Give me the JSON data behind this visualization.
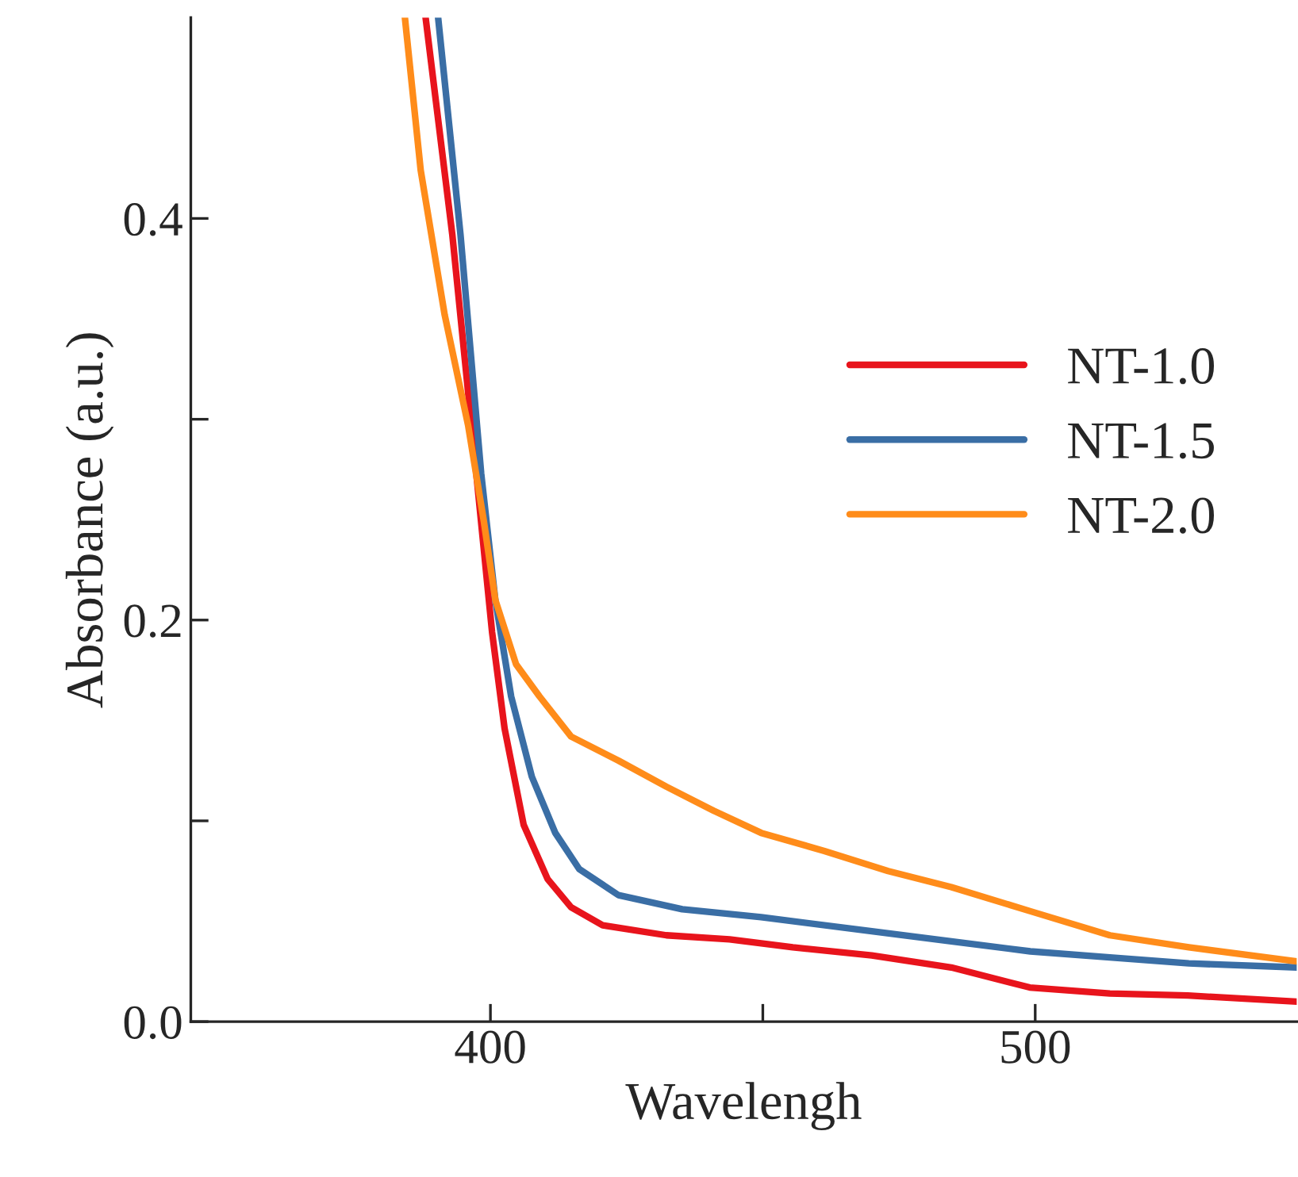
{
  "chart_data": {
    "type": "line",
    "xlabel": "Wavelengh",
    "ylabel": "Absorbance (a.u.)",
    "xlim": [
      345,
      548
    ],
    "ylim": [
      0,
      0.5
    ],
    "xticks": [
      400,
      {
        "value": 450,
        "label": null
      },
      500
    ],
    "yticks": [
      {
        "value": 0,
        "label": "0.0"
      },
      {
        "value": 0.1,
        "label": null
      },
      0.2,
      {
        "value": 0.3,
        "label": null
      },
      0.4
    ],
    "legend": "top right",
    "grid": false,
    "line_style": "solid",
    "marker": "none",
    "series": [
      {
        "name": "NT-1.0",
        "color": "#e8141c",
        "x": [
          388.1,
          393,
          397.4,
          400.3,
          402.6,
          406.1,
          410.5,
          414.8,
          420.6,
          432.3,
          443.9,
          455.5,
          470,
          484.6,
          499,
          513.7,
          528,
          548
        ],
        "values": [
          0.5,
          0.392,
          0.273,
          0.194,
          0.146,
          0.098,
          0.071,
          0.057,
          0.048,
          0.043,
          0.041,
          0.037,
          0.033,
          0.027,
          0.017,
          0.014,
          0.013,
          0.01
        ]
      },
      {
        "name": "NT-1.5",
        "color": "#3a6ea5",
        "x": [
          390.4,
          394.5,
          398.3,
          400.9,
          403.8,
          407.6,
          411.9,
          416.3,
          423.5,
          435.2,
          449.7,
          470,
          484.6,
          499.1,
          513.7,
          528.2,
          548
        ],
        "values": [
          0.5,
          0.392,
          0.273,
          0.21,
          0.162,
          0.122,
          0.094,
          0.076,
          0.063,
          0.056,
          0.052,
          0.045,
          0.04,
          0.035,
          0.032,
          0.029,
          0.027
        ]
      },
      {
        "name": "NT-2.0",
        "color": "#ff8c1a",
        "x": [
          384.3,
          387.2,
          391.6,
          395.9,
          398.8,
          400.9,
          404.7,
          409,
          414.8,
          423.5,
          432.3,
          441,
          449.7,
          461.3,
          473,
          484.6,
          499.1,
          513.7,
          528.2,
          548
        ],
        "values": [
          0.5,
          0.424,
          0.352,
          0.297,
          0.249,
          0.21,
          0.178,
          0.162,
          0.142,
          0.13,
          0.117,
          0.105,
          0.094,
          0.085,
          0.075,
          0.067,
          0.055,
          0.043,
          0.037,
          0.03
        ]
      }
    ]
  }
}
